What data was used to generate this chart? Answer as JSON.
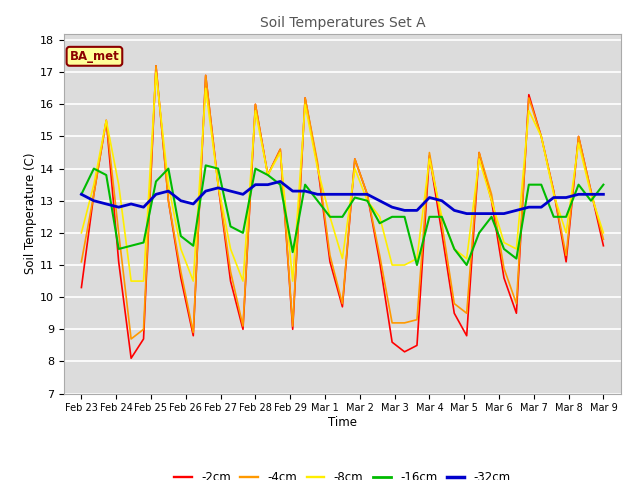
{
  "title": "Soil Temperatures Set A",
  "xlabel": "Time",
  "ylabel": "Soil Temperature (C)",
  "ylim": [
    7.0,
    18.2
  ],
  "yticks": [
    7.0,
    8.0,
    9.0,
    10.0,
    11.0,
    12.0,
    13.0,
    14.0,
    15.0,
    16.0,
    17.0,
    18.0
  ],
  "figure_bg": "#ffffff",
  "plot_bg": "#dcdcdc",
  "grid_color": "#ffffff",
  "annotation_text": "BA_met",
  "annotation_bg": "#ffff99",
  "annotation_border": "#8b0000",
  "legend_entries": [
    "-2cm",
    "-4cm",
    "-8cm",
    "-16cm",
    "-32cm"
  ],
  "line_colors": [
    "#ff0000",
    "#ff9900",
    "#ffee00",
    "#00bb00",
    "#0000cc"
  ],
  "line_widths": [
    1.2,
    1.2,
    1.2,
    1.5,
    2.0
  ],
  "x_tick_labels": [
    "Feb 23",
    "Feb 24",
    "Feb 25",
    "Feb 26",
    "Feb 27",
    "Feb 28",
    "Feb 29",
    "Mar 1",
    "Mar 2",
    "Mar 3",
    "Mar 4",
    "Mar 5",
    "Mar 6",
    "Mar 7",
    "Mar 8",
    "Mar 9"
  ],
  "data": {
    "depth_2cm": [
      10.3,
      13.2,
      15.5,
      11.1,
      8.1,
      8.7,
      17.2,
      13.0,
      10.6,
      8.8,
      16.9,
      13.5,
      10.5,
      9.0,
      16.0,
      13.8,
      14.6,
      9.0,
      16.2,
      14.1,
      11.1,
      9.7,
      14.3,
      13.2,
      11.1,
      8.6,
      8.3,
      8.5,
      14.4,
      12.0,
      9.5,
      8.8,
      14.5,
      13.0,
      10.6,
      9.5,
      16.3,
      15.0,
      13.3,
      11.1,
      15.0,
      13.3,
      11.6
    ],
    "depth_4cm": [
      11.1,
      13.2,
      15.5,
      12.0,
      8.7,
      9.0,
      17.2,
      13.0,
      10.8,
      8.9,
      16.9,
      13.5,
      10.8,
      9.1,
      16.0,
      13.8,
      14.6,
      9.1,
      16.2,
      14.2,
      11.3,
      9.8,
      14.3,
      13.2,
      11.3,
      9.2,
      9.2,
      9.3,
      14.5,
      12.3,
      9.8,
      9.5,
      14.5,
      13.2,
      10.9,
      9.8,
      16.2,
      15.0,
      13.3,
      11.3,
      15.0,
      13.3,
      11.8
    ],
    "depth_8cm": [
      12.0,
      13.5,
      15.5,
      13.5,
      10.5,
      10.5,
      17.0,
      13.5,
      11.5,
      10.5,
      16.5,
      13.5,
      11.5,
      10.5,
      15.8,
      13.8,
      14.5,
      10.5,
      16.0,
      14.0,
      12.5,
      11.2,
      14.0,
      13.0,
      12.5,
      11.0,
      11.0,
      11.2,
      14.3,
      12.5,
      11.5,
      11.2,
      14.3,
      13.0,
      11.7,
      11.5,
      15.8,
      15.0,
      13.2,
      12.0,
      14.8,
      13.2,
      12.0
    ],
    "depth_16cm": [
      13.2,
      14.0,
      13.8,
      11.5,
      11.6,
      11.7,
      13.6,
      14.0,
      11.9,
      11.6,
      14.1,
      14.0,
      12.2,
      12.0,
      14.0,
      13.8,
      13.5,
      11.4,
      13.5,
      13.0,
      12.5,
      12.5,
      13.1,
      13.0,
      12.3,
      12.5,
      12.5,
      11.0,
      12.5,
      12.5,
      11.5,
      11.0,
      12.0,
      12.5,
      11.5,
      11.2,
      13.5,
      13.5,
      12.5,
      12.5,
      13.5,
      13.0,
      13.5
    ],
    "depth_32cm": [
      13.2,
      13.0,
      12.9,
      12.8,
      12.9,
      12.8,
      13.2,
      13.3,
      13.0,
      12.9,
      13.3,
      13.4,
      13.3,
      13.2,
      13.5,
      13.5,
      13.6,
      13.3,
      13.3,
      13.2,
      13.2,
      13.2,
      13.2,
      13.2,
      13.0,
      12.8,
      12.7,
      12.7,
      13.1,
      13.0,
      12.7,
      12.6,
      12.6,
      12.6,
      12.6,
      12.7,
      12.8,
      12.8,
      13.1,
      13.1,
      13.2,
      13.2,
      13.2
    ]
  }
}
